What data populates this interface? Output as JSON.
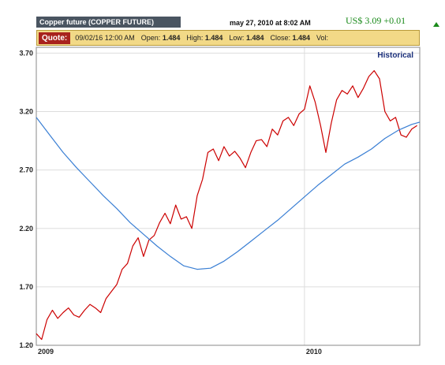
{
  "header": {
    "title": "Copper future (COPPER FUTURE)",
    "timestamp": "may 27, 2010 at 8:02 AM",
    "price": "US$ 3.09 +0.01",
    "price_color": "#1a8a1a"
  },
  "quote": {
    "label": "Quote:",
    "date": "09/02/16 12:00 AM",
    "open_label": "Open:",
    "open": "1.484",
    "high_label": "High:",
    "high": "1.484",
    "low_label": "Low:",
    "low": "1.484",
    "close_label": "Close:",
    "close": "1.484",
    "vol_label": "Vol:"
  },
  "chart_data": {
    "type": "line",
    "mode_label": "Historical",
    "x_ticks": [
      "2009",
      "2010"
    ],
    "y_ticks": [
      "3.70",
      "3.20",
      "2.70",
      "2.20",
      "1.70",
      "1.20"
    ],
    "ylim": [
      1.2,
      3.75
    ],
    "xlim": [
      2009.0,
      2010.43
    ],
    "grid": true,
    "series": [
      {
        "color": "#cc0000",
        "x": [
          2009.0,
          2009.02,
          2009.04,
          2009.06,
          2009.08,
          2009.1,
          2009.12,
          2009.14,
          2009.16,
          2009.18,
          2009.2,
          2009.22,
          2009.24,
          2009.26,
          2009.28,
          2009.3,
          2009.32,
          2009.34,
          2009.36,
          2009.38,
          2009.4,
          2009.42,
          2009.44,
          2009.46,
          2009.48,
          2009.5,
          2009.52,
          2009.54,
          2009.56,
          2009.58,
          2009.6,
          2009.62,
          2009.64,
          2009.66,
          2009.68,
          2009.7,
          2009.72,
          2009.74,
          2009.76,
          2009.78,
          2009.8,
          2009.82,
          2009.84,
          2009.86,
          2009.88,
          2009.9,
          2009.92,
          2009.94,
          2009.96,
          2009.98,
          2010.0,
          2010.02,
          2010.04,
          2010.06,
          2010.08,
          2010.1,
          2010.12,
          2010.14,
          2010.16,
          2010.18,
          2010.2,
          2010.22,
          2010.24,
          2010.26,
          2010.28,
          2010.3,
          2010.32,
          2010.34,
          2010.36,
          2010.38,
          2010.4,
          2010.42
        ],
        "values": [
          1.3,
          1.25,
          1.42,
          1.5,
          1.43,
          1.48,
          1.52,
          1.46,
          1.44,
          1.5,
          1.55,
          1.52,
          1.48,
          1.6,
          1.66,
          1.72,
          1.85,
          1.9,
          2.05,
          2.12,
          1.96,
          2.1,
          2.14,
          2.25,
          2.33,
          2.24,
          2.4,
          2.28,
          2.3,
          2.2,
          2.48,
          2.62,
          2.85,
          2.88,
          2.78,
          2.9,
          2.82,
          2.86,
          2.8,
          2.72,
          2.85,
          2.95,
          2.96,
          2.9,
          3.05,
          3.0,
          3.12,
          3.15,
          3.08,
          3.18,
          3.22,
          3.42,
          3.28,
          3.08,
          2.85,
          3.1,
          3.3,
          3.38,
          3.35,
          3.42,
          3.32,
          3.4,
          3.5,
          3.55,
          3.48,
          3.2,
          3.12,
          3.15,
          3.0,
          2.98,
          3.05,
          3.08
        ]
      },
      {
        "color": "#3a7fd4",
        "x": [
          2009.0,
          2009.05,
          2009.1,
          2009.15,
          2009.2,
          2009.25,
          2009.3,
          2009.35,
          2009.4,
          2009.45,
          2009.5,
          2009.55,
          2009.6,
          2009.65,
          2009.7,
          2009.75,
          2009.8,
          2009.85,
          2009.9,
          2009.95,
          2010.0,
          2010.05,
          2010.1,
          2010.15,
          2010.2,
          2010.25,
          2010.3,
          2010.35,
          2010.4,
          2010.43
        ],
        "values": [
          3.15,
          3.0,
          2.85,
          2.72,
          2.6,
          2.48,
          2.37,
          2.25,
          2.15,
          2.05,
          1.96,
          1.88,
          1.85,
          1.86,
          1.92,
          2.0,
          2.09,
          2.18,
          2.27,
          2.37,
          2.47,
          2.57,
          2.66,
          2.75,
          2.81,
          2.88,
          2.97,
          3.04,
          3.09,
          3.11
        ]
      }
    ]
  }
}
